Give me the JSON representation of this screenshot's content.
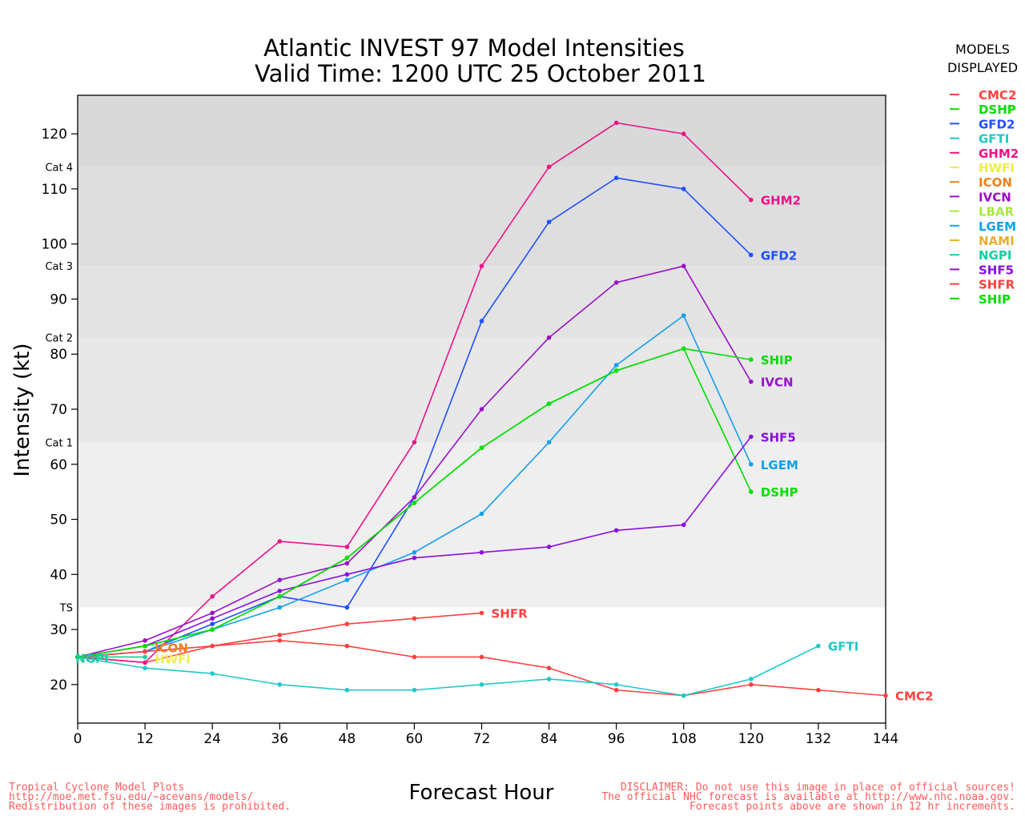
{
  "chart_data": {
    "type": "line",
    "title": "Atlantic INVEST 97 Model Intensities",
    "subtitle": "Valid Time: 1200 UTC 25 October 2011",
    "xlabel": "Forecast Hour",
    "ylabel": "Intensity (kt)",
    "xlim": [
      0,
      144
    ],
    "ylim": [
      13,
      127
    ],
    "x_ticks": [
      0,
      12,
      24,
      36,
      48,
      60,
      72,
      84,
      96,
      108,
      120,
      132,
      144
    ],
    "y_ticks": [
      20,
      30,
      40,
      50,
      60,
      70,
      80,
      90,
      100,
      110,
      120
    ],
    "grid": false,
    "legend_position": "right",
    "legend_title_line1": "MODELS",
    "legend_title_line2": "DISPLAYED",
    "category_bands": [
      {
        "label": "TS",
        "from": 34,
        "to": 64,
        "color": "#efefef"
      },
      {
        "label": "Cat 1",
        "from": 64,
        "to": 83,
        "color": "#e8e8e8"
      },
      {
        "label": "Cat 2",
        "from": 83,
        "to": 96,
        "color": "#e3e3e3"
      },
      {
        "label": "Cat 3",
        "from": 96,
        "to": 114,
        "color": "#dedede"
      },
      {
        "label": "Cat 4",
        "from": 114,
        "to": 127,
        "color": "#d9d9d9"
      }
    ],
    "series": [
      {
        "name": "CMC2",
        "color": "#ff4040",
        "x": [
          0,
          12,
          24,
          36,
          48,
          60,
          72,
          84,
          96,
          108,
          120,
          132,
          144
        ],
        "values": [
          25,
          24,
          27,
          28,
          27,
          25,
          25,
          23,
          19,
          18,
          20,
          19,
          18
        ],
        "end_label": "CMC2"
      },
      {
        "name": "DSHP",
        "color": "#00dd00",
        "x": [
          0,
          12,
          24,
          36,
          48,
          60,
          72,
          84,
          96,
          108,
          120
        ],
        "values": [
          25,
          27,
          30,
          36,
          43,
          53,
          63,
          71,
          77,
          81,
          55
        ],
        "end_label": "DSHP"
      },
      {
        "name": "GFD2",
        "color": "#2050ff",
        "x": [
          0,
          12,
          24,
          36,
          48,
          60,
          72,
          84,
          96,
          108,
          120
        ],
        "values": [
          25,
          26,
          31,
          36,
          34,
          54,
          86,
          104,
          112,
          110,
          98
        ],
        "end_label": "GFD2"
      },
      {
        "name": "GFTI",
        "color": "#20c8c8",
        "x": [
          0,
          12,
          24,
          36,
          48,
          60,
          72,
          84,
          96,
          108,
          120,
          132
        ],
        "values": [
          25,
          23,
          22,
          20,
          19,
          19,
          20,
          21,
          20,
          18,
          21,
          27
        ],
        "end_label": "GFTI"
      },
      {
        "name": "GHM2",
        "color": "#ee1188",
        "x": [
          0,
          12,
          24,
          36,
          48,
          60,
          72,
          84,
          96,
          108,
          120
        ],
        "values": [
          25,
          24,
          36,
          46,
          45,
          64,
          96,
          114,
          122,
          120,
          108
        ],
        "end_label": "GHM2"
      },
      {
        "name": "HWFI",
        "color": "#eeee44",
        "x": [
          0,
          12
        ],
        "values": [
          25,
          25
        ],
        "end_label": "HWFI"
      },
      {
        "name": "ICON",
        "color": "#f08020",
        "x": [
          0,
          12
        ],
        "values": [
          25,
          26
        ],
        "end_label": "ICON"
      },
      {
        "name": "IVCN",
        "color": "#9a10c8",
        "x": [
          0,
          12,
          24,
          36,
          48,
          60,
          72,
          84,
          96,
          108,
          120
        ],
        "values": [
          25,
          28,
          33,
          39,
          42,
          54,
          70,
          83,
          93,
          96,
          75
        ],
        "end_label": "IVCN"
      },
      {
        "name": "LBAR",
        "color": "#a8e840",
        "x": [],
        "values": [],
        "end_label": ""
      },
      {
        "name": "LGEM",
        "color": "#10a0ee",
        "x": [
          0,
          12,
          24,
          36,
          48,
          60,
          72,
          84,
          96,
          108,
          120
        ],
        "values": [
          25,
          26,
          30,
          34,
          39,
          44,
          51,
          64,
          78,
          87,
          60
        ],
        "end_label": "LGEM"
      },
      {
        "name": "NAMI",
        "color": "#e8b030",
        "x": [],
        "values": [],
        "end_label": ""
      },
      {
        "name": "NGPI",
        "color": "#10d0a0",
        "x": [
          0,
          12
        ],
        "values": [
          25,
          25
        ],
        "end_label": "NGPI"
      },
      {
        "name": "SHF5",
        "color": "#8a10e0",
        "x": [
          0,
          12,
          24,
          36,
          48,
          60,
          72,
          84,
          96,
          108,
          120
        ],
        "values": [
          25,
          27,
          32,
          37,
          40,
          43,
          44,
          45,
          48,
          49,
          65
        ],
        "end_label": "SHF5"
      },
      {
        "name": "SHFR",
        "color": "#ff4040",
        "x": [
          0,
          12,
          24,
          36,
          48,
          60,
          72
        ],
        "values": [
          25,
          26,
          27,
          29,
          31,
          32,
          33
        ],
        "end_label": "SHFR"
      },
      {
        "name": "SHIP",
        "color": "#00dd00",
        "x": [
          0,
          12,
          24,
          36,
          48,
          60,
          72,
          84,
          96,
          108,
          120
        ],
        "values": [
          25,
          27,
          30,
          36,
          43,
          53,
          63,
          71,
          77,
          81,
          79
        ],
        "end_label": "SHIP"
      }
    ]
  },
  "footer": {
    "left_line1": "Tropical Cyclone Model Plots",
    "left_line2": "http://moe.met.fsu.edu/~acevans/models/",
    "left_line3": "Redistribution of these images is prohibited.",
    "right_line1": "DISCLAIMER: Do not use this image in place of official sources!",
    "right_line2": "The official NHC forecast is available at http://www.nhc.noaa.gov.",
    "right_line3": "Forecast points above are shown in 12 hr increments."
  }
}
